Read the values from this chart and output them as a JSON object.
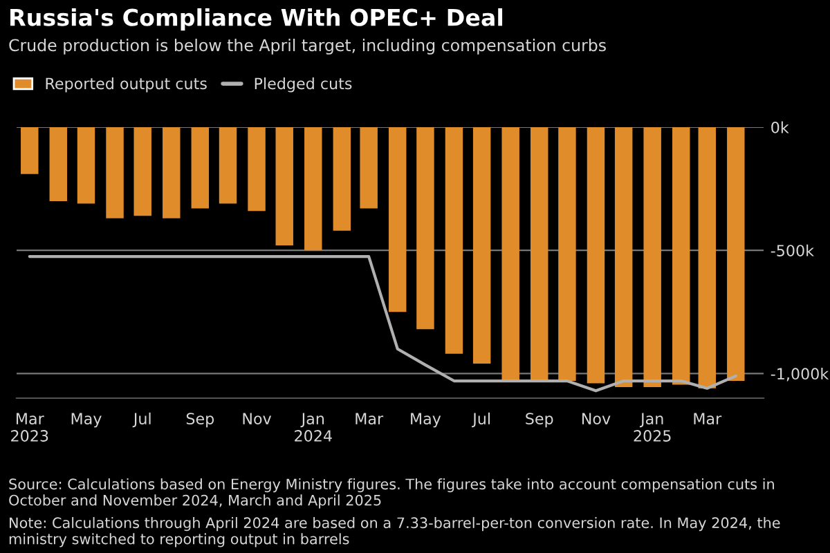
{
  "chart_data": {
    "type": "bar",
    "title": "Russia's Compliance With OPEC+ Deal",
    "subtitle": "Crude production is below the April target, including compensation curbs",
    "x": [
      "2023-03",
      "2023-04",
      "2023-05",
      "2023-06",
      "2023-07",
      "2023-08",
      "2023-09",
      "2023-10",
      "2023-11",
      "2023-12",
      "2024-01",
      "2024-02",
      "2024-03",
      "2024-04",
      "2024-05",
      "2024-06",
      "2024-07",
      "2024-08",
      "2024-09",
      "2024-10",
      "2024-11",
      "2024-12",
      "2025-01",
      "2025-02",
      "2025-03",
      "2025-04"
    ],
    "series": [
      {
        "name": "Reported output cuts",
        "color": "#e08c2a",
        "values": [
          -190,
          -300,
          -310,
          -370,
          -360,
          -370,
          -330,
          -310,
          -340,
          -480,
          -500,
          -420,
          -330,
          -750,
          -820,
          -920,
          -960,
          -1030,
          -1030,
          -1030,
          -1040,
          -1055,
          -1055,
          -1045,
          -1060,
          -1030
        ]
      },
      {
        "name": "Pledged cuts",
        "type": "line",
        "color": "#b0b0b0",
        "values": [
          -525,
          -525,
          -525,
          -525,
          -525,
          -525,
          -525,
          -525,
          -525,
          -525,
          -525,
          -525,
          -525,
          -900,
          -965,
          -1030,
          -1030,
          -1030,
          -1030,
          -1030,
          -1070,
          -1030,
          -1030,
          -1030,
          -1060,
          -1010
        ]
      }
    ],
    "ylim": [
      -1100,
      0
    ],
    "yticks": [
      {
        "value": 0,
        "label": "0k"
      },
      {
        "value": -500,
        "label": "-500k"
      },
      {
        "value": -1000,
        "label": "-1,000k"
      }
    ],
    "xlim": [
      "2023-02-15",
      "2025-05-01"
    ],
    "xticks": [
      {
        "value": "2023-03",
        "label": "Mar\n2023"
      },
      {
        "value": "2023-05",
        "label": "May"
      },
      {
        "value": "2023-07",
        "label": "Jul"
      },
      {
        "value": "2023-09",
        "label": "Sep"
      },
      {
        "value": "2023-11",
        "label": "Nov"
      },
      {
        "value": "2024-01",
        "label": "Jan\n2024"
      },
      {
        "value": "2024-03",
        "label": "Mar"
      },
      {
        "value": "2024-05",
        "label": "May"
      },
      {
        "value": "2024-07",
        "label": "Jul"
      },
      {
        "value": "2024-09",
        "label": "Sep"
      },
      {
        "value": "2024-11",
        "label": "Nov"
      },
      {
        "value": "2025-01",
        "label": "Jan\n2025"
      },
      {
        "value": "2025-03",
        "label": "Mar"
      }
    ],
    "grid": "y",
    "legend": "top left",
    "annotations": [
      "Source: Calculations based on Energy Ministry figures. The figures take into account compensation cuts in October and November 2024, March and April 2025",
      "Note: Calculations through April 2024 are based on a 7.33-barrel-per-ton conversion rate. In May 2024, the ministry switched to reporting output in barrels"
    ]
  }
}
